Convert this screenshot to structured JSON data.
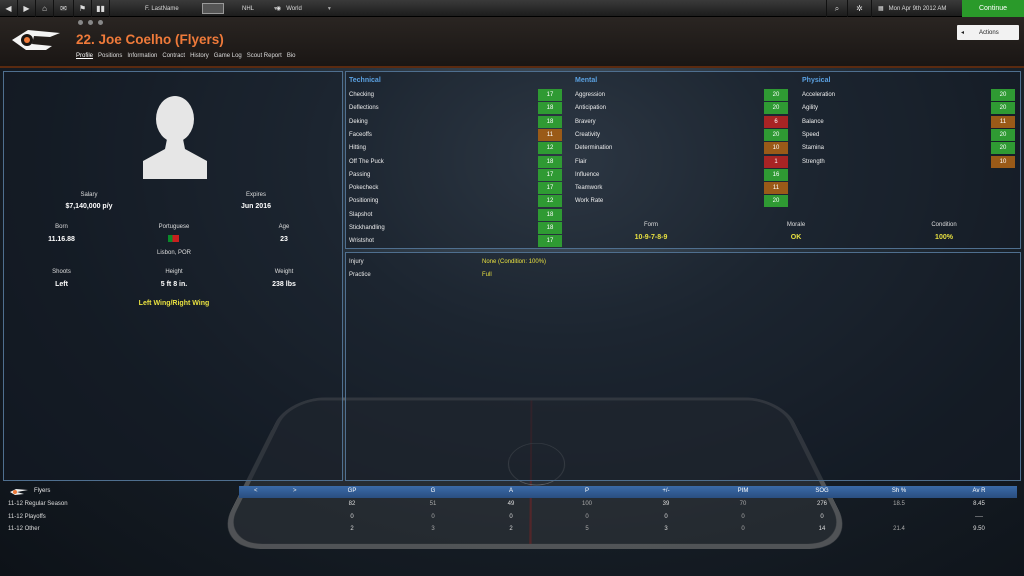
{
  "topbar": {
    "manager": "F. LastName",
    "league": "NHL",
    "world": "World",
    "date": "Mon Apr 9th 2012 AM",
    "continue": "Continue"
  },
  "header": {
    "title": "22. Joe Coelho (Flyers)",
    "actions": "Actions",
    "tabs": [
      "Profile",
      "Positions",
      "Information",
      "Contract",
      "History",
      "Game Log",
      "Scout Report",
      "Bio"
    ]
  },
  "bio": {
    "salary_label": "Salary",
    "salary": "$7,140,000 p/y",
    "expires_label": "Expires",
    "expires": "Jun 2016",
    "born_label": "Born",
    "born": "11.16.88",
    "nat_label": "Portuguese",
    "birthplace": "Lisbon, POR",
    "age_label": "Age",
    "age": "23",
    "shoots_label": "Shoots",
    "shoots": "Left",
    "height_label": "Height",
    "height": "5 ft 8 in.",
    "weight_label": "Weight",
    "weight": "238 lbs",
    "position": "Left Wing/Right Wing"
  },
  "attributes": {
    "technical": {
      "title": "Technical",
      "items": [
        [
          "Checking",
          "17",
          "g"
        ],
        [
          "Deflections",
          "18",
          "g"
        ],
        [
          "Deking",
          "18",
          "g"
        ],
        [
          "Faceoffs",
          "11",
          "o"
        ],
        [
          "Hitting",
          "12",
          "g"
        ],
        [
          "Off The Puck",
          "18",
          "g"
        ],
        [
          "Passing",
          "17",
          "g"
        ],
        [
          "Pokecheck",
          "17",
          "g"
        ],
        [
          "Positioning",
          "12",
          "g"
        ],
        [
          "Slapshot",
          "18",
          "g"
        ],
        [
          "Stickhandling",
          "18",
          "g"
        ],
        [
          "Wristshot",
          "17",
          "g"
        ]
      ]
    },
    "mental": {
      "title": "Mental",
      "items": [
        [
          "Aggression",
          "20",
          "g"
        ],
        [
          "Anticipation",
          "20",
          "g"
        ],
        [
          "Bravery",
          "6",
          "r"
        ],
        [
          "Creativity",
          "20",
          "g"
        ],
        [
          "Determination",
          "10",
          "o"
        ],
        [
          "Flair",
          "1",
          "r"
        ],
        [
          "Influence",
          "16",
          "g"
        ],
        [
          "Teamwork",
          "11",
          "o"
        ],
        [
          "Work Rate",
          "20",
          "g"
        ]
      ]
    },
    "physical": {
      "title": "Physical",
      "items": [
        [
          "Acceleration",
          "20",
          "g"
        ],
        [
          "Agility",
          "20",
          "g"
        ],
        [
          "Balance",
          "11",
          "o"
        ],
        [
          "Speed",
          "20",
          "g"
        ],
        [
          "Stamina",
          "20",
          "g"
        ],
        [
          "Strength",
          "10",
          "o"
        ]
      ]
    }
  },
  "status": {
    "form_label": "Form",
    "form": "10-9-7-8-9",
    "morale_label": "Morale",
    "morale": "OK",
    "condition_label": "Condition",
    "condition": "100%"
  },
  "injury": {
    "injury_label": "Injury",
    "injury": "None (Condition: 100%)",
    "practice_label": "Practice",
    "practice": "Full"
  },
  "stats": {
    "team": "Flyers",
    "prev": "<",
    "next": ">",
    "headers": [
      "GP",
      "G",
      "A",
      "P",
      "+/-",
      "PIM",
      "SOG",
      "Sh %",
      "Av R"
    ],
    "rows": [
      [
        "11-12 Regular Season",
        "82",
        "51",
        "49",
        "100",
        "39",
        "70",
        "276",
        "18.5",
        "8.45"
      ],
      [
        "11-12 Playoffs",
        "0",
        "0",
        "0",
        "0",
        "0",
        "0",
        "0",
        "",
        "----"
      ],
      [
        "11-12 Other",
        "2",
        "3",
        "2",
        "5",
        "3",
        "0",
        "14",
        "21.4",
        "9.50"
      ]
    ]
  },
  "colors": {
    "accent": "#ef7a3a",
    "header_blue": "#5aa0e0",
    "good": "#2f9a33",
    "mid": "#9a5a18",
    "bad": "#a82424"
  }
}
